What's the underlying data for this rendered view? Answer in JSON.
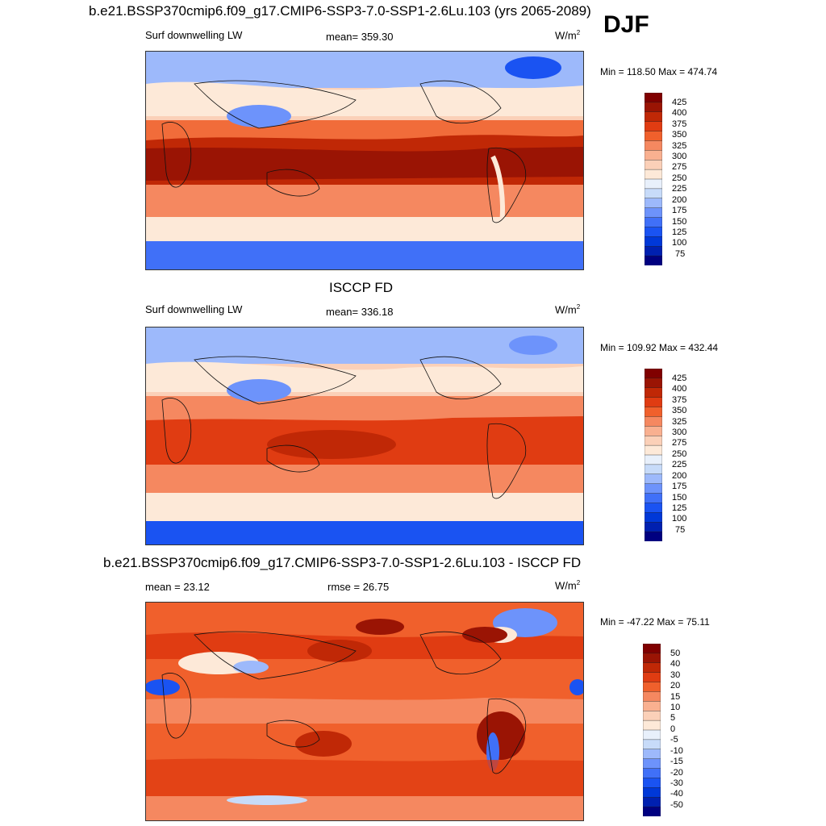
{
  "header": {
    "title": "b.e21.BSSP370cmip6.f09_g17.CMIP6-SSP3-7.0-SSP1-2.6Lu.103 (yrs 2065-2089)",
    "season": "DJF"
  },
  "panels": [
    {
      "variable": "Surf downwelling LW",
      "stat": "mean= 359.30",
      "units": "W/m",
      "units_sup": "2",
      "minmax": "Min = 118.50 Max = 474.74",
      "colors": [
        "#000080",
        "#0020b0",
        "#0038d8",
        "#1a53f2",
        "#4070f8",
        "#6d93fb",
        "#9db9fb",
        "#c7dbf9",
        "#e8f0fb",
        "#fde9d8",
        "#fbd0b8",
        "#f9b090",
        "#f58860",
        "#f0602c",
        "#e03c12",
        "#c02806",
        "#9a1404",
        "#800000"
      ],
      "ticks": [
        "425",
        "400",
        "375",
        "350",
        "325",
        "300",
        "275",
        "250",
        "225",
        "200",
        "175",
        "150",
        "125",
        "100",
        "75"
      ]
    },
    {
      "title": "ISCCP FD",
      "variable": "Surf downwelling LW",
      "stat": "mean= 336.18",
      "units": "W/m",
      "units_sup": "2",
      "minmax": "Min = 109.92 Max = 432.44",
      "colors": [
        "#000080",
        "#0020b0",
        "#0038d8",
        "#1a53f2",
        "#4070f8",
        "#6d93fb",
        "#9db9fb",
        "#c7dbf9",
        "#e8f0fb",
        "#fde9d8",
        "#fbd0b8",
        "#f9b090",
        "#f58860",
        "#f0602c",
        "#e03c12",
        "#c02806",
        "#9a1404",
        "#800000"
      ],
      "ticks": [
        "425",
        "400",
        "375",
        "350",
        "325",
        "300",
        "275",
        "250",
        "225",
        "200",
        "175",
        "150",
        "125",
        "100",
        "75"
      ]
    },
    {
      "title": "b.e21.BSSP370cmip6.f09_g17.CMIP6-SSP3-7.0-SSP1-2.6Lu.103 - ISCCP FD",
      "stat_left": "mean =  23.12",
      "stat": "rmse =  26.75",
      "units": "W/m",
      "units_sup": "2",
      "minmax": "Min = -47.22 Max =  75.11",
      "colors": [
        "#000080",
        "#0020b0",
        "#0038d8",
        "#1a53f2",
        "#4070f8",
        "#6d93fb",
        "#9db9fb",
        "#c7dbf9",
        "#e8f0fb",
        "#fde9d8",
        "#fbd0b8",
        "#f9b090",
        "#f58860",
        "#f0602c",
        "#e03c12",
        "#c02806",
        "#9a1404",
        "#800000"
      ],
      "ticks": [
        "50",
        "40",
        "30",
        "20",
        "15",
        "10",
        "5",
        "0",
        "-5",
        "-10",
        "-15",
        "-20",
        "-30",
        "-40",
        "-50"
      ]
    }
  ],
  "chart_data": [
    {
      "type": "heatmap",
      "title": "b.e21.BSSP370cmip6.f09_g17.CMIP6-SSP3-7.0-SSP1-2.6Lu.103 (yrs 2065-2089)",
      "variable": "Surf downwelling LW",
      "mean": 359.3,
      "min": 118.5,
      "max": 474.74,
      "units": "W/m2",
      "levels": [
        75,
        100,
        125,
        150,
        175,
        200,
        225,
        250,
        275,
        300,
        325,
        350,
        375,
        400,
        425
      ]
    },
    {
      "type": "heatmap",
      "title": "ISCCP FD",
      "variable": "Surf downwelling LW",
      "mean": 336.18,
      "min": 109.92,
      "max": 432.44,
      "units": "W/m2",
      "levels": [
        75,
        100,
        125,
        150,
        175,
        200,
        225,
        250,
        275,
        300,
        325,
        350,
        375,
        400,
        425
      ]
    },
    {
      "type": "heatmap",
      "title": "b.e21.BSSP370cmip6.f09_g17.CMIP6-SSP3-7.0-SSP1-2.6Lu.103 - ISCCP FD",
      "mean": 23.12,
      "rmse": 26.75,
      "min": -47.22,
      "max": 75.11,
      "units": "W/m2",
      "levels": [
        -50,
        -40,
        -30,
        -20,
        -15,
        -10,
        -5,
        0,
        5,
        10,
        15,
        20,
        30,
        40,
        50
      ]
    }
  ]
}
